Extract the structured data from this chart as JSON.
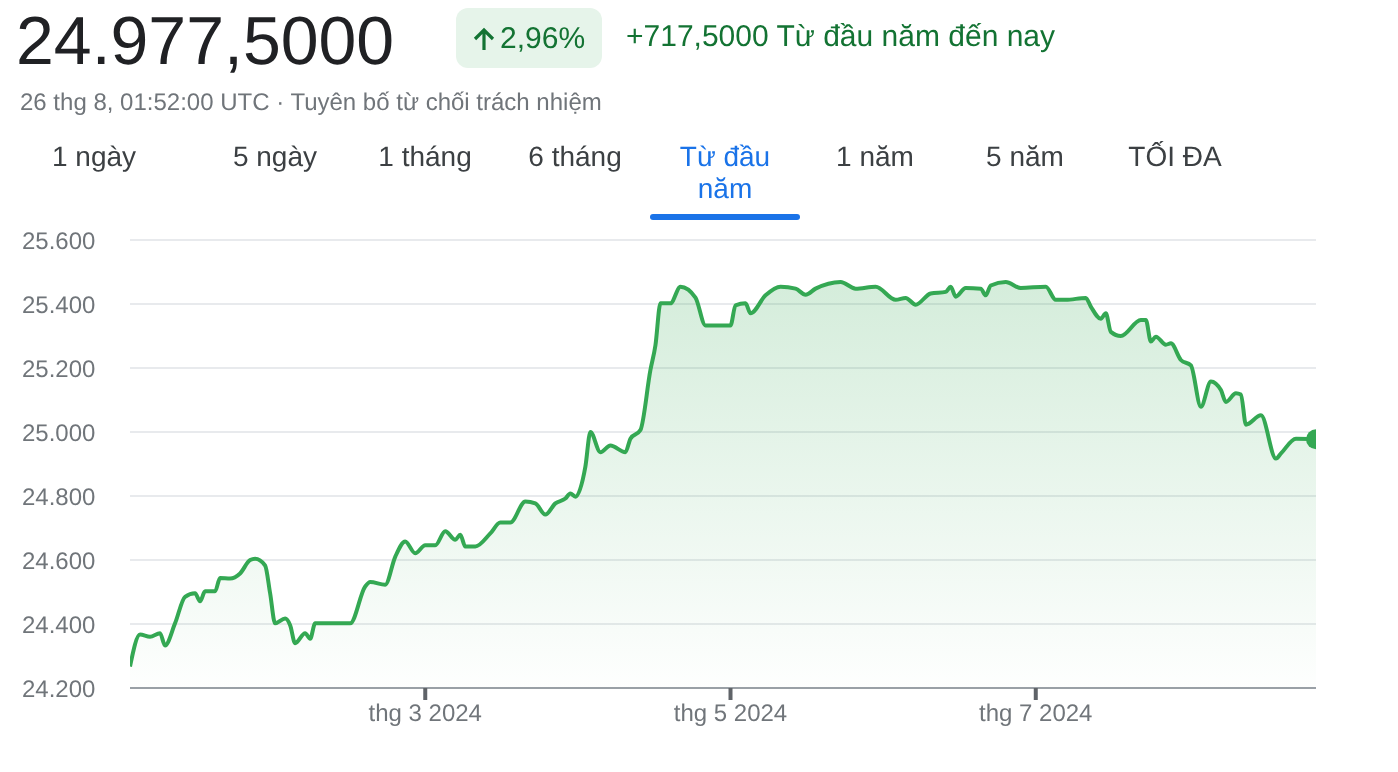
{
  "chart_data": {
    "type": "area",
    "title": "24.977,5000",
    "subtitle": "26 thg 8, 01:52:00 UTC · Tuyên bố từ chối trách nhiệm",
    "annotations": [
      "2,96%",
      "+717,5000 Từ đầu năm đến nay",
      "1 ngày",
      "5 ngày",
      "1 tháng",
      "6 tháng",
      "Từ đầu năm",
      "1 năm",
      "5 năm",
      "TỐI ĐA"
    ],
    "x": [
      "2024-01-02",
      "2024-01-04",
      "2024-01-06",
      "2024-01-08",
      "2024-01-09",
      "2024-01-11",
      "2024-01-13",
      "2024-01-15",
      "2024-01-16",
      "2024-01-17",
      "2024-01-19",
      "2024-01-20",
      "2024-01-22",
      "2024-01-24",
      "2024-01-26",
      "2024-01-27",
      "2024-01-29",
      "2024-01-30",
      "2024-01-31",
      "2024-02-02",
      "2024-02-03",
      "2024-02-04",
      "2024-02-06",
      "2024-02-07",
      "2024-02-08",
      "2024-02-15",
      "2024-02-18",
      "2024-02-19",
      "2024-02-22",
      "2024-02-24",
      "2024-02-26",
      "2024-02-28",
      "2024-03-01",
      "2024-03-03",
      "2024-03-05",
      "2024-03-07",
      "2024-03-08",
      "2024-03-09",
      "2024-03-11",
      "2024-03-14",
      "2024-03-16",
      "2024-03-18",
      "2024-03-21",
      "2024-03-23",
      "2024-03-25",
      "2024-03-27",
      "2024-03-29",
      "2024-03-30",
      "2024-03-31",
      "2024-04-02",
      "2024-04-03",
      "2024-04-05",
      "2024-04-07",
      "2024-04-10",
      "2024-04-11",
      "2024-04-13",
      "2024-04-15",
      "2024-04-16",
      "2024-04-17",
      "2024-04-19",
      "2024-04-21",
      "2024-04-24",
      "2024-04-26",
      "2024-05-01",
      "2024-05-02",
      "2024-05-04",
      "2024-05-05",
      "2024-05-08",
      "2024-05-11",
      "2024-05-14",
      "2024-05-16",
      "2024-05-18",
      "2024-05-23",
      "2024-05-26",
      "2024-05-30",
      "2024-06-03",
      "2024-06-05",
      "2024-06-07",
      "2024-06-10",
      "2024-06-13",
      "2024-06-14",
      "2024-06-15",
      "2024-06-17",
      "2024-06-20",
      "2024-06-21",
      "2024-06-22",
      "2024-06-25",
      "2024-06-28",
      "2024-07-03",
      "2024-07-05",
      "2024-07-07",
      "2024-07-11",
      "2024-07-12",
      "2024-07-14",
      "2024-07-15",
      "2024-07-16",
      "2024-07-18",
      "2024-07-22",
      "2024-07-23",
      "2024-07-24",
      "2024-07-25",
      "2024-07-27",
      "2024-07-28",
      "2024-07-30",
      "2024-08-01",
      "2024-08-03",
      "2024-08-05",
      "2024-08-07",
      "2024-08-08",
      "2024-08-10",
      "2024-08-11",
      "2024-08-12",
      "2024-08-15",
      "2024-08-18",
      "2024-08-19",
      "2024-08-22",
      "2024-08-26"
    ],
    "series": [
      {
        "color": "#34a853",
        "values": [
          24267,
          24367,
          24360,
          24371,
          24333,
          24402,
          24485,
          24496,
          24471,
          24502,
          24502,
          24544,
          24542,
          24558,
          24600,
          24604,
          24583,
          24496,
          24402,
          24417,
          24396,
          24340,
          24371,
          24354,
          24402,
          24402,
          24517,
          24531,
          24523,
          24610,
          24658,
          24621,
          24646,
          24646,
          24690,
          24663,
          24679,
          24642,
          24642,
          24683,
          24717,
          24717,
          24783,
          24777,
          24742,
          24777,
          24792,
          24808,
          24798,
          24892,
          25000,
          24937,
          24958,
          24937,
          24979,
          25006,
          25194,
          25271,
          25402,
          25402,
          25454,
          25420,
          25333,
          25333,
          25396,
          25402,
          25371,
          25427,
          25454,
          25448,
          25429,
          25448,
          25469,
          25448,
          25454,
          25413,
          25419,
          25398,
          25433,
          25438,
          25454,
          25423,
          25450,
          25448,
          25427,
          25458,
          25469,
          25450,
          25454,
          25413,
          25413,
          25419,
          25392,
          25354,
          25371,
          25313,
          25300,
          25350,
          25350,
          25283,
          25298,
          25273,
          25277,
          25225,
          25208,
          25079,
          25158,
          25131,
          25094,
          25121,
          25117,
          25023,
          25052,
          24917,
          24933,
          24979,
          24977.5
        ]
      }
    ],
    "xlim": [
      "2024-01-02",
      "2024-08-26"
    ],
    "xticks": [
      {
        "value": "2024-03-01",
        "label": "thg 3 2024"
      },
      {
        "value": "2024-05-01",
        "label": "thg 5 2024"
      },
      {
        "value": "2024-07-01",
        "label": "thg 7 2024"
      }
    ],
    "ylim": [
      24200,
      25600
    ],
    "yticks": [
      {
        "value": 24200,
        "label": "24.200"
      },
      {
        "value": 24400,
        "label": "24.400"
      },
      {
        "value": 24600,
        "label": "24.600"
      },
      {
        "value": 24800,
        "label": "24.800"
      },
      {
        "value": 25000,
        "label": "25.000"
      },
      {
        "value": 25200,
        "label": "25.200"
      },
      {
        "value": 25400,
        "label": "25.400"
      },
      {
        "value": 25600,
        "label": "25.600"
      }
    ],
    "grid": "y",
    "legend": false
  }
}
